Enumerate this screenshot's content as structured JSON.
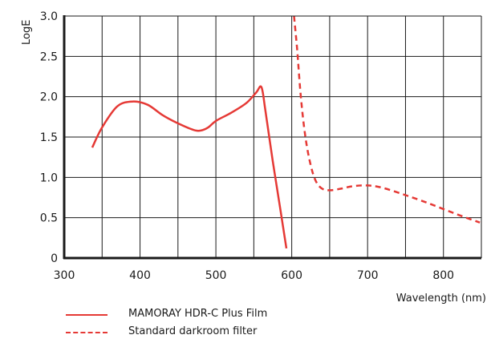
{
  "chart_data": {
    "type": "line",
    "xlabel": "Wavelength (nm)",
    "ylabel": "LogE",
    "xlim": [
      300,
      850
    ],
    "ylim": [
      0,
      3.0
    ],
    "x_ticks": [
      300,
      400,
      500,
      600,
      700,
      800
    ],
    "y_ticks": [
      0,
      0.5,
      1.0,
      1.5,
      2.0,
      2.5,
      3.0
    ],
    "y_tick_labels": [
      "0",
      "0.5",
      "1.0",
      "1.5",
      "2.0",
      "2.5",
      "3.0"
    ],
    "grid": true,
    "legend_position": "bottom",
    "series": [
      {
        "name": "MAMORAY HDR-C Plus Film",
        "style": "solid",
        "color": "#e53935",
        "x": [
          337,
          350,
          370,
          390,
          410,
          430,
          450,
          470,
          480,
          490,
          500,
          520,
          540,
          553,
          560,
          565,
          575,
          585,
          593
        ],
        "y": [
          1.37,
          1.62,
          1.88,
          1.94,
          1.9,
          1.77,
          1.67,
          1.59,
          1.58,
          1.62,
          1.7,
          1.8,
          1.92,
          2.05,
          2.12,
          1.85,
          1.2,
          0.6,
          0.12
        ]
      },
      {
        "name": "Standard darkroom filter",
        "style": "dashed",
        "color": "#e53935",
        "x": [
          603,
          607,
          612,
          618,
          625,
          632,
          640,
          650,
          665,
          680,
          700,
          720,
          750,
          780,
          810,
          830,
          848
        ],
        "y": [
          3.0,
          2.6,
          2.0,
          1.5,
          1.15,
          0.95,
          0.86,
          0.84,
          0.86,
          0.89,
          0.9,
          0.87,
          0.78,
          0.68,
          0.57,
          0.5,
          0.44
        ]
      }
    ]
  }
}
